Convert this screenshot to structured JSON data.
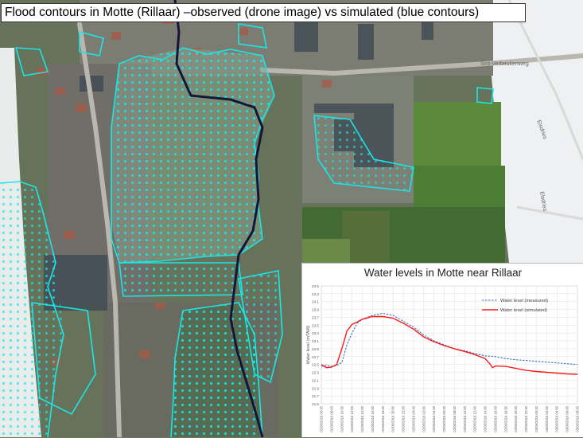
{
  "title": "Flood contours in Motte (Rillaar) –observed (drone image) vs simulated (blue contours)",
  "street_labels": [
    "Sint-Verbeukenweg",
    "Elsdries",
    "Elsdries"
  ],
  "colors": {
    "flood_contour": "#19e6e6",
    "river": "#15153a",
    "measured": "#3d74c6",
    "simulated": "#ff1a1a"
  },
  "chart_data": {
    "type": "line",
    "title": "Water levels in Motte near Rillaar",
    "ylabel": "Water level (mTAW)",
    "xlabel": "",
    "ylim": [
      21.5,
      24.5
    ],
    "y_ticks": [
      "24.5",
      "24.3",
      "24.1",
      "23.9",
      "23.7",
      "23.5",
      "23.3",
      "23.1",
      "22.9",
      "22.7",
      "22.5",
      "22.3",
      "22.1",
      "21.9",
      "21.7",
      "21.5"
    ],
    "x_ticks": [
      "01/06/2016 06:00",
      "01/06/2016 08:00",
      "01/06/2016 10:00",
      "01/06/2016 12:00",
      "01/06/2016 14:00",
      "01/06/2016 16:00",
      "01/06/2016 18:00",
      "01/06/2016 20:00",
      "01/06/2016 22:00",
      "02/06/2016 00:00",
      "02/06/2016 02:00",
      "02/06/2016 04:00",
      "02/06/2016 06:00",
      "02/06/2016 08:00",
      "02/06/2016 10:00",
      "02/06/2016 12:00",
      "02/06/2016 14:00",
      "02/06/2016 16:00",
      "02/06/2016 18:00",
      "02/06/2016 20:00",
      "02/06/2016 22:00",
      "03/06/2016 00:00",
      "03/06/2016 02:00",
      "03/06/2016 04:00",
      "03/06/2016 06:00",
      "03/06/2016 08:00"
    ],
    "legend": "top-right",
    "grid": true,
    "series": [
      {
        "name": "Water level (measured)",
        "style": "dashed",
        "color": "#3d74c6",
        "points": [
          [
            0,
            22.45
          ],
          [
            0.5,
            22.48
          ],
          [
            1,
            22.45
          ],
          [
            1.5,
            22.47
          ],
          [
            2,
            22.55
          ],
          [
            2.5,
            23.0
          ],
          [
            3,
            23.3
          ],
          [
            3.5,
            23.55
          ],
          [
            4,
            23.65
          ],
          [
            5,
            23.75
          ],
          [
            6,
            23.8
          ],
          [
            7,
            23.75
          ],
          [
            8,
            23.6
          ],
          [
            9,
            23.45
          ],
          [
            10,
            23.25
          ],
          [
            11,
            23.1
          ],
          [
            12,
            23.0
          ],
          [
            13,
            22.9
          ],
          [
            14,
            22.85
          ],
          [
            15,
            22.78
          ],
          [
            16,
            22.72
          ],
          [
            17,
            22.7
          ],
          [
            18,
            22.65
          ],
          [
            19,
            22.62
          ],
          [
            20,
            22.6
          ],
          [
            21,
            22.58
          ],
          [
            22,
            22.56
          ],
          [
            23,
            22.54
          ],
          [
            24,
            22.52
          ],
          [
            25,
            22.5
          ]
        ]
      },
      {
        "name": "Water level (simulated)",
        "style": "solid",
        "color": "#ff1a1a",
        "points": [
          [
            0,
            22.5
          ],
          [
            0.5,
            22.42
          ],
          [
            1,
            22.43
          ],
          [
            1.5,
            22.5
          ],
          [
            2,
            22.9
          ],
          [
            2.5,
            23.35
          ],
          [
            3,
            23.52
          ],
          [
            3.5,
            23.58
          ],
          [
            4,
            23.65
          ],
          [
            5,
            23.72
          ],
          [
            6,
            23.72
          ],
          [
            7,
            23.68
          ],
          [
            8,
            23.55
          ],
          [
            9,
            23.4
          ],
          [
            10,
            23.2
          ],
          [
            11,
            23.08
          ],
          [
            12,
            22.98
          ],
          [
            13,
            22.9
          ],
          [
            14,
            22.83
          ],
          [
            15,
            22.75
          ],
          [
            16,
            22.65
          ],
          [
            16.5,
            22.5
          ],
          [
            16.7,
            22.42
          ],
          [
            17,
            22.46
          ],
          [
            18,
            22.45
          ],
          [
            19,
            22.4
          ],
          [
            20,
            22.35
          ],
          [
            21,
            22.32
          ],
          [
            22,
            22.3
          ],
          [
            23,
            22.28
          ],
          [
            24,
            22.26
          ],
          [
            25,
            22.25
          ]
        ]
      }
    ]
  }
}
